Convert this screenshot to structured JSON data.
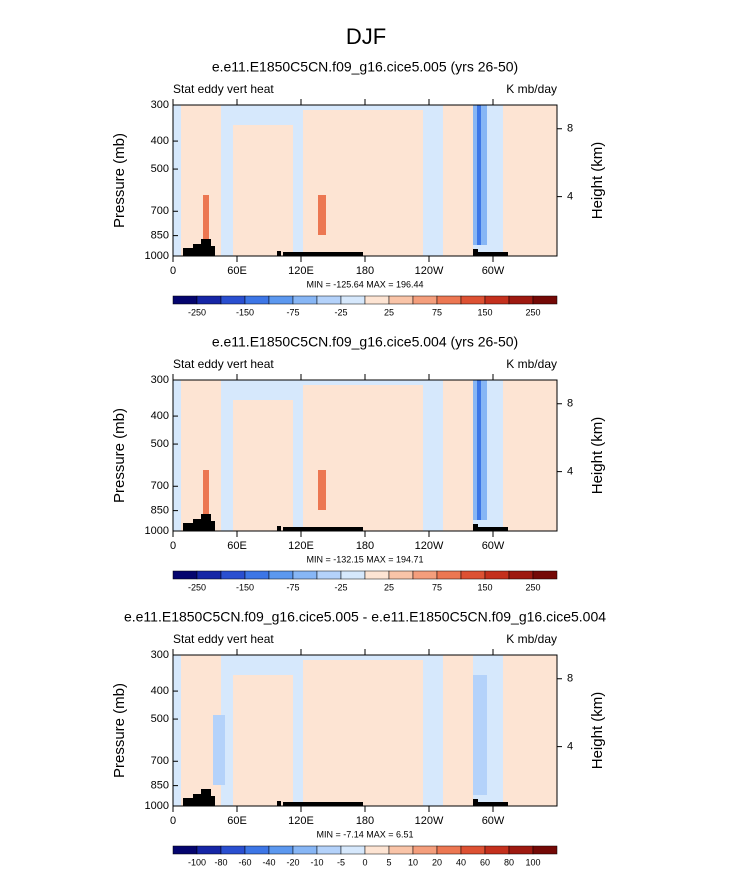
{
  "title": "DJF",
  "chart_data": [
    {
      "type": "contour",
      "title": "e.e11.E1850C5CN.f09_g16.cice5.005 (yrs 26-50)",
      "left_label": "Stat eddy vert heat",
      "right_label": "K mb/day",
      "ylabel": "Pressure (mb)",
      "y2label": "Height (km)",
      "ylog": true,
      "ylim": [
        1000,
        300
      ],
      "yticks": [
        300,
        400,
        500,
        700,
        850,
        1000
      ],
      "y2lim": [
        0.5,
        9.4
      ],
      "y2ticks": [
        4,
        8
      ],
      "xlim": [
        0,
        360
      ],
      "xticks": [
        0,
        {
          "value": 60,
          "label": "60E"
        },
        {
          "value": 120,
          "label": "120E"
        },
        180,
        {
          "value": 240,
          "label": "120W"
        },
        {
          "value": 300,
          "label": "60W"
        }
      ],
      "stats": "MIN = -125.64  MAX = 196.44",
      "colorbar_labels": [
        -250,
        -150,
        -75,
        -25,
        25,
        75,
        150,
        250
      ],
      "colorbar_label_every": 2,
      "colors": [
        "#05056e",
        "#1626a6",
        "#2a4fd0",
        "#3d76e6",
        "#5c98ef",
        "#87b6f5",
        "#b4d2fa",
        "#d6e8fc",
        "#fde4d3",
        "#f9c4a8",
        "#f49e7c",
        "#ec7752",
        "#dd5133",
        "#c4301d",
        "#9e1910",
        "#740906"
      ]
    },
    {
      "type": "contour",
      "title": "e.e11.E1850C5CN.f09_g16.cice5.004 (yrs 26-50)",
      "left_label": "Stat eddy vert heat",
      "right_label": "K mb/day",
      "ylabel": "Pressure (mb)",
      "y2label": "Height (km)",
      "ylog": true,
      "ylim": [
        1000,
        300
      ],
      "yticks": [
        300,
        400,
        500,
        700,
        850,
        1000
      ],
      "y2lim": [
        0.5,
        9.4
      ],
      "y2ticks": [
        4,
        8
      ],
      "xlim": [
        0,
        360
      ],
      "xticks": [
        0,
        {
          "value": 60,
          "label": "60E"
        },
        {
          "value": 120,
          "label": "120E"
        },
        180,
        {
          "value": 240,
          "label": "120W"
        },
        {
          "value": 300,
          "label": "60W"
        }
      ],
      "stats": "MIN = -132.15  MAX = 194.71",
      "colorbar_labels": [
        -250,
        -150,
        -75,
        -25,
        25,
        75,
        150,
        250
      ],
      "colorbar_label_every": 2,
      "colors": [
        "#05056e",
        "#1626a6",
        "#2a4fd0",
        "#3d76e6",
        "#5c98ef",
        "#87b6f5",
        "#b4d2fa",
        "#d6e8fc",
        "#fde4d3",
        "#f9c4a8",
        "#f49e7c",
        "#ec7752",
        "#dd5133",
        "#c4301d",
        "#9e1910",
        "#740906"
      ]
    },
    {
      "type": "contour",
      "title": "e.e11.E1850C5CN.f09_g16.cice5.005 - e.e11.E1850C5CN.f09_g16.cice5.004",
      "left_label": "Stat eddy vert heat",
      "right_label": "K mb/day",
      "ylabel": "Pressure (mb)",
      "y2label": "Height (km)",
      "ylog": true,
      "ylim": [
        1000,
        300
      ],
      "yticks": [
        300,
        400,
        500,
        700,
        850,
        1000
      ],
      "y2lim": [
        0.5,
        9.4
      ],
      "y2ticks": [
        4,
        8
      ],
      "xlim": [
        0,
        360
      ],
      "xticks": [
        0,
        {
          "value": 60,
          "label": "60E"
        },
        {
          "value": 120,
          "label": "120E"
        },
        180,
        {
          "value": 240,
          "label": "120W"
        },
        {
          "value": 300,
          "label": "60W"
        }
      ],
      "stats": "MIN = -7.14  MAX =  6.51",
      "colorbar_labels": [
        -100,
        -80,
        -60,
        -40,
        -20,
        -10,
        -5,
        0,
        5,
        10,
        20,
        40,
        60,
        80,
        100
      ],
      "colorbar_label_every": 1,
      "colors": [
        "#05056e",
        "#1626a6",
        "#2a4fd0",
        "#3d76e6",
        "#5c98ef",
        "#87b6f5",
        "#b4d2fa",
        "#d6e8fc",
        "#fde4d3",
        "#f9c4a8",
        "#f49e7c",
        "#ec7752",
        "#dd5133",
        "#c4301d",
        "#9e1910",
        "#740906"
      ]
    }
  ]
}
